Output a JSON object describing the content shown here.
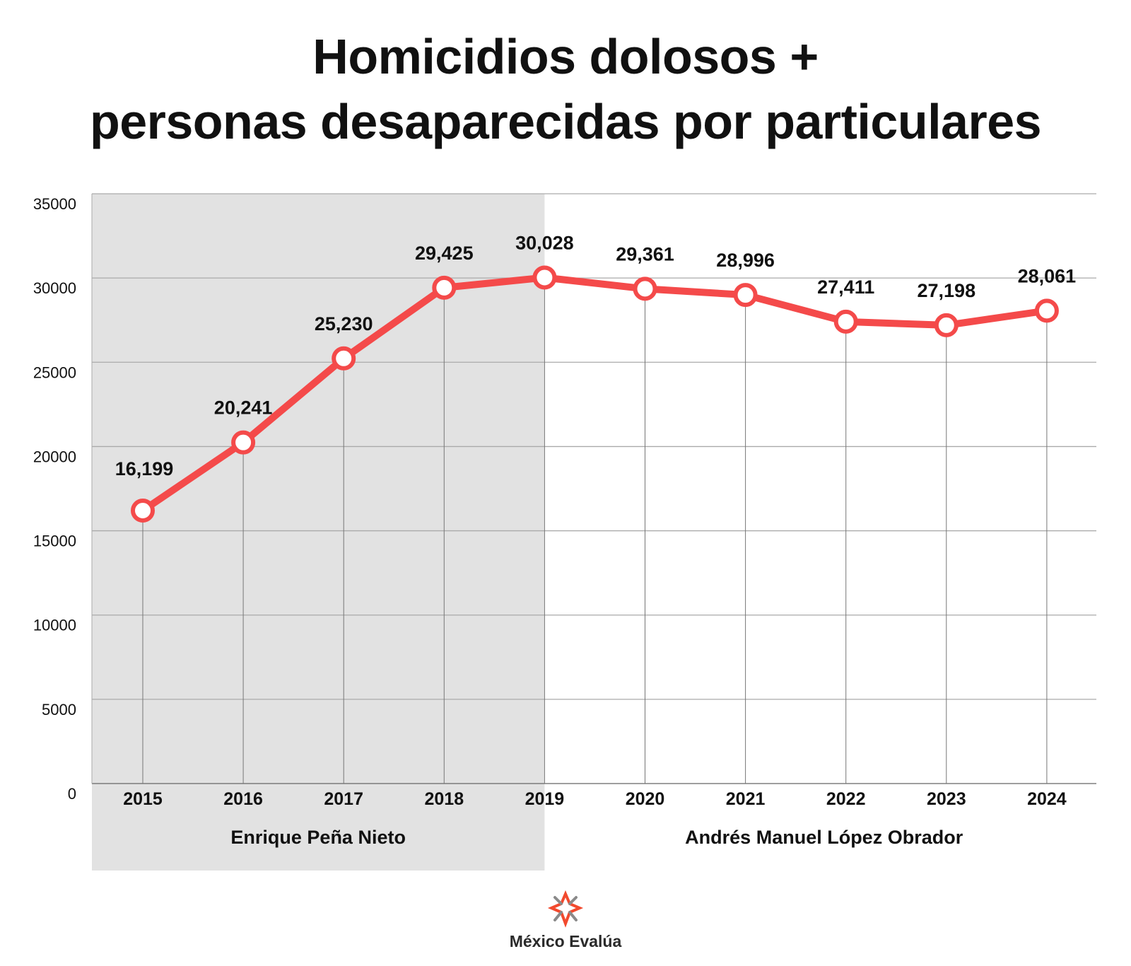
{
  "title_line1": "Homicidios dolosos +",
  "title_line2": "personas desaparecidas por particulares",
  "logo_text": "México Evalúa",
  "colors": {
    "line": "#f44a4a",
    "shade": "#e2e2e2",
    "grid": "#aaaaaa"
  },
  "chart_data": {
    "type": "line",
    "title": "Homicidios dolosos + personas desaparecidas por particulares",
    "xlabel": "",
    "ylabel": "",
    "x": [
      "2015",
      "2016",
      "2017",
      "2018",
      "2019",
      "2020",
      "2021",
      "2022",
      "2023",
      "2024"
    ],
    "series": [
      {
        "name": "Homicidios dolosos + personas desaparecidas por particulares",
        "values": [
          16199,
          20241,
          25230,
          29425,
          30028,
          29361,
          28996,
          27411,
          27198,
          28061
        ]
      }
    ],
    "data_labels": [
      "16,199",
      "20,241",
      "25,230",
      "29,425",
      "30,028",
      "29,361",
      "28,996",
      "27,411",
      "27,198",
      "28,061"
    ],
    "yticks": [
      0,
      5000,
      10000,
      15000,
      20000,
      25000,
      30000,
      35000
    ],
    "ytick_labels": [
      "0",
      "5000",
      "10000",
      "15000",
      "20000",
      "25000",
      "30000",
      "35000"
    ],
    "ylim": [
      0,
      35000
    ],
    "grid": true,
    "periods": [
      {
        "label": "Enrique Peña Nieto",
        "from": "2015",
        "to": "2019",
        "shaded": true
      },
      {
        "label": "Andrés Manuel López Obrador",
        "from": "2019",
        "to": "2024",
        "shaded": false
      }
    ]
  }
}
